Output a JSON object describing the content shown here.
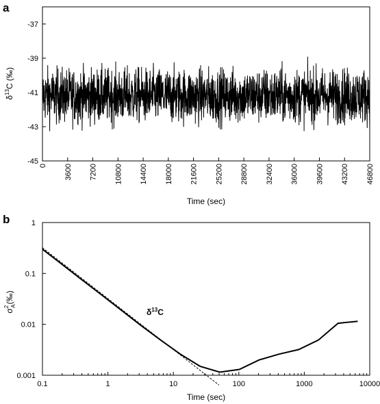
{
  "chart_data": [
    {
      "panel": "a",
      "type": "line",
      "xlabel": "Time (sec)",
      "ylabel_main": "δ",
      "ylabel_sup": "13",
      "ylabel_rest": "C (‰)",
      "xlim": [
        0,
        46800
      ],
      "ylim": [
        -45,
        -36
      ],
      "xticks": [
        0,
        3600,
        7200,
        10800,
        14400,
        18000,
        21600,
        25200,
        28800,
        32400,
        36000,
        39600,
        43200,
        46800
      ],
      "yticks": [
        -37,
        -39,
        -41,
        -43,
        -45
      ],
      "series": [
        {
          "mean": -41.2,
          "approx_min": -43.8,
          "approx_max": -38.6,
          "description_of_shape": "dense noisy signal around mean"
        }
      ],
      "grid": false
    },
    {
      "panel": "b",
      "type": "line",
      "xlabel": "Time (sec)",
      "ylabel_main": "σ",
      "ylabel_sup": "2",
      "ylabel_sub": "A",
      "ylabel_rest": "(‰)",
      "xscale": "log",
      "yscale": "log",
      "xlim": [
        0.1,
        10000
      ],
      "ylim": [
        0.001,
        1
      ],
      "xticks": [
        "0.1",
        "1",
        "10",
        "100",
        "1000",
        "10000"
      ],
      "yticks": [
        "1",
        "0.1",
        "0.01",
        "0.001"
      ],
      "series": [
        {
          "style": "solid",
          "x": [
            0.1,
            0.2,
            0.4,
            0.8,
            1.6,
            3.2,
            6.4,
            12.8,
            25.6,
            51.2,
            102,
            205,
            410,
            820,
            1640,
            3280,
            6550
          ],
          "y": [
            0.3,
            0.15,
            0.075,
            0.038,
            0.019,
            0.0095,
            0.0049,
            0.0026,
            0.0015,
            0.00115,
            0.0013,
            0.002,
            0.0026,
            0.0032,
            0.0049,
            0.0105,
            0.0115
          ]
        },
        {
          "style": "dashed",
          "x": [
            0.08,
            50
          ],
          "y": [
            0.4,
            0.00064
          ]
        }
      ],
      "annotation": {
        "main": "δ",
        "sup": "13",
        "rest": "C"
      },
      "grid": false
    }
  ]
}
